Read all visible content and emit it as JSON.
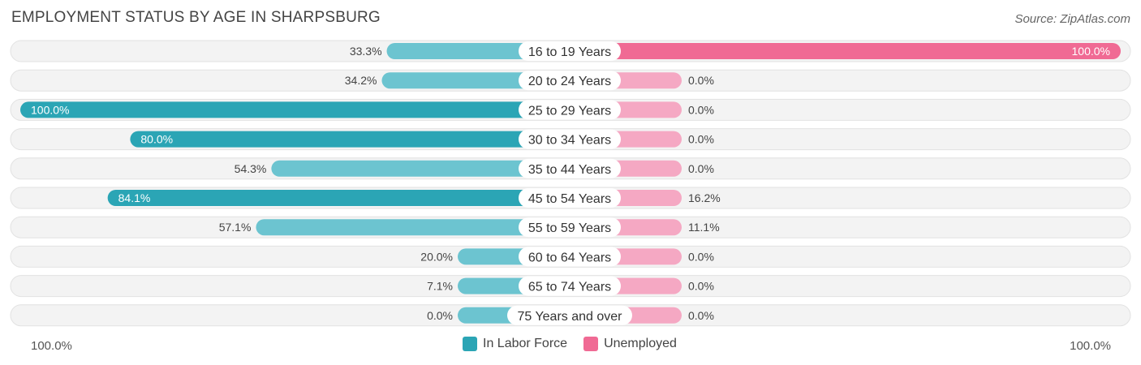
{
  "header": {
    "title": "EMPLOYMENT STATUS BY AGE IN SHARPSBURG",
    "source": "Source: ZipAtlas.com"
  },
  "colors": {
    "labor_force_dark": "#2ba5b5",
    "labor_force_light": "#6cc4d0",
    "unemployed_dark": "#f06a94",
    "unemployed_light": "#f5a8c3",
    "track": "#f0f0f0"
  },
  "axis": {
    "left_label": "100.0%",
    "right_label": "100.0%"
  },
  "legend": {
    "labor_force": "In Labor Force",
    "unemployed": "Unemployed"
  },
  "chart_data": {
    "type": "bar",
    "title": "EMPLOYMENT STATUS BY AGE IN SHARPSBURG",
    "categories": [
      "16 to 19 Years",
      "20 to 24 Years",
      "25 to 29 Years",
      "30 to 34 Years",
      "35 to 44 Years",
      "45 to 54 Years",
      "55 to 59 Years",
      "60 to 64 Years",
      "65 to 74 Years",
      "75 Years and over"
    ],
    "series": [
      {
        "name": "In Labor Force",
        "values": [
          33.3,
          34.2,
          100.0,
          80.0,
          54.3,
          84.1,
          57.1,
          20.0,
          7.1,
          0.0
        ],
        "labels": [
          "33.3%",
          "34.2%",
          "100.0%",
          "80.0%",
          "54.3%",
          "84.1%",
          "57.1%",
          "20.0%",
          "7.1%",
          "0.0%"
        ]
      },
      {
        "name": "Unemployed",
        "values": [
          100.0,
          0.0,
          0.0,
          0.0,
          0.0,
          16.2,
          11.1,
          0.0,
          0.0,
          0.0
        ],
        "labels": [
          "100.0%",
          "0.0%",
          "0.0%",
          "0.0%",
          "0.0%",
          "16.2%",
          "11.1%",
          "0.0%",
          "0.0%",
          "0.0%"
        ]
      }
    ],
    "xlim": [
      0,
      100
    ],
    "legend_position": "bottom-center"
  }
}
